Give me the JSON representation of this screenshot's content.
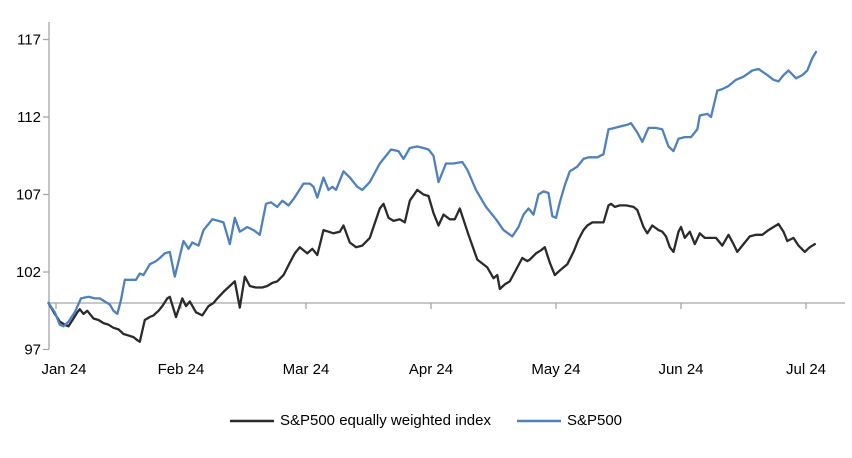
{
  "chart_data": {
    "type": "line",
    "title": "",
    "xlabel": "",
    "ylabel": "",
    "x_axis": {
      "tick_labels": [
        "Jan 24",
        "Feb 24",
        "Mar 24",
        "Apr 24",
        "May 24",
        "Jun 24",
        "Jul 24"
      ],
      "unit": "months since Jan 24"
    },
    "y_axis": {
      "ticks": [
        97,
        102,
        107,
        112,
        117
      ],
      "range": [
        97,
        118
      ],
      "baseline_value": 100,
      "gridline_at_100": true
    },
    "legend_position": "bottom-center",
    "series": [
      {
        "name": "S&P500 equally weighted index",
        "color": "#2b2b2b",
        "points": [
          [
            -0.06,
            100.0
          ],
          [
            -0.01,
            99.3
          ],
          [
            0.03,
            98.8
          ],
          [
            0.07,
            98.6
          ],
          [
            0.1,
            98.5
          ],
          [
            0.14,
            99.0
          ],
          [
            0.17,
            99.4
          ],
          [
            0.19,
            99.6
          ],
          [
            0.22,
            99.3
          ],
          [
            0.25,
            99.5
          ],
          [
            0.3,
            99.0
          ],
          [
            0.34,
            98.9
          ],
          [
            0.38,
            98.7
          ],
          [
            0.42,
            98.6
          ],
          [
            0.46,
            98.4
          ],
          [
            0.5,
            98.3
          ],
          [
            0.54,
            98.0
          ],
          [
            0.58,
            97.9
          ],
          [
            0.62,
            97.8
          ],
          [
            0.65,
            97.6
          ],
          [
            0.67,
            97.5
          ],
          [
            0.71,
            98.9
          ],
          [
            0.75,
            99.1
          ],
          [
            0.78,
            99.2
          ],
          [
            0.82,
            99.5
          ],
          [
            0.85,
            99.8
          ],
          [
            0.89,
            100.3
          ],
          [
            0.91,
            100.4
          ],
          [
            0.96,
            99.1
          ],
          [
            1.01,
            100.3
          ],
          [
            1.04,
            99.8
          ],
          [
            1.07,
            100.1
          ],
          [
            1.12,
            99.4
          ],
          [
            1.17,
            99.2
          ],
          [
            1.22,
            99.8
          ],
          [
            1.26,
            100.0
          ],
          [
            1.29,
            100.3
          ],
          [
            1.35,
            100.8
          ],
          [
            1.39,
            101.1
          ],
          [
            1.43,
            101.4
          ],
          [
            1.47,
            99.7
          ],
          [
            1.51,
            101.7
          ],
          [
            1.55,
            101.1
          ],
          [
            1.6,
            101.0
          ],
          [
            1.65,
            101.0
          ],
          [
            1.69,
            101.1
          ],
          [
            1.73,
            101.3
          ],
          [
            1.77,
            101.4
          ],
          [
            1.82,
            101.8
          ],
          [
            1.87,
            102.6
          ],
          [
            1.91,
            103.2
          ],
          [
            1.95,
            103.6
          ],
          [
            2.01,
            103.2
          ],
          [
            2.05,
            103.5
          ],
          [
            2.09,
            103.1
          ],
          [
            2.14,
            104.7
          ],
          [
            2.18,
            104.6
          ],
          [
            2.22,
            104.5
          ],
          [
            2.27,
            104.6
          ],
          [
            2.3,
            105.0
          ],
          [
            2.35,
            103.9
          ],
          [
            2.4,
            103.6
          ],
          [
            2.45,
            103.7
          ],
          [
            2.51,
            104.2
          ],
          [
            2.59,
            106.1
          ],
          [
            2.62,
            106.4
          ],
          [
            2.66,
            105.5
          ],
          [
            2.7,
            105.3
          ],
          [
            2.75,
            105.4
          ],
          [
            2.79,
            105.2
          ],
          [
            2.83,
            106.6
          ],
          [
            2.89,
            107.3
          ],
          [
            2.94,
            107.0
          ],
          [
            2.98,
            106.9
          ],
          [
            3.02,
            105.8
          ],
          [
            3.06,
            105.0
          ],
          [
            3.1,
            105.7
          ],
          [
            3.15,
            105.4
          ],
          [
            3.19,
            105.4
          ],
          [
            3.23,
            106.1
          ],
          [
            3.3,
            104.4
          ],
          [
            3.37,
            102.8
          ],
          [
            3.45,
            102.3
          ],
          [
            3.5,
            101.6
          ],
          [
            3.53,
            101.8
          ],
          [
            3.55,
            100.9
          ],
          [
            3.59,
            101.2
          ],
          [
            3.63,
            101.4
          ],
          [
            3.67,
            102.0
          ],
          [
            3.73,
            102.9
          ],
          [
            3.77,
            102.7
          ],
          [
            3.79,
            102.8
          ],
          [
            3.84,
            103.2
          ],
          [
            3.88,
            103.4
          ],
          [
            3.91,
            103.6
          ],
          [
            3.95,
            102.6
          ],
          [
            3.99,
            101.8
          ],
          [
            4.03,
            102.1
          ],
          [
            4.09,
            102.5
          ],
          [
            4.14,
            103.3
          ],
          [
            4.18,
            104.1
          ],
          [
            4.22,
            104.7
          ],
          [
            4.25,
            105.0
          ],
          [
            4.29,
            105.2
          ],
          [
            4.34,
            105.2
          ],
          [
            4.38,
            105.2
          ],
          [
            4.42,
            106.3
          ],
          [
            4.44,
            106.4
          ],
          [
            4.47,
            106.2
          ],
          [
            4.51,
            106.3
          ],
          [
            4.56,
            106.3
          ],
          [
            4.62,
            106.2
          ],
          [
            4.65,
            106.0
          ],
          [
            4.7,
            104.9
          ],
          [
            4.73,
            104.5
          ],
          [
            4.77,
            105.0
          ],
          [
            4.82,
            104.7
          ],
          [
            4.85,
            104.6
          ],
          [
            4.88,
            104.3
          ],
          [
            4.91,
            103.6
          ],
          [
            4.94,
            103.3
          ],
          [
            4.98,
            104.6
          ],
          [
            5.0,
            104.9
          ],
          [
            5.03,
            104.2
          ],
          [
            5.07,
            104.6
          ],
          [
            5.11,
            103.8
          ],
          [
            5.15,
            104.5
          ],
          [
            5.19,
            104.2
          ],
          [
            5.24,
            104.2
          ],
          [
            5.28,
            104.2
          ],
          [
            5.33,
            103.7
          ],
          [
            5.38,
            104.4
          ],
          [
            5.42,
            103.8
          ],
          [
            5.45,
            103.3
          ],
          [
            5.5,
            103.8
          ],
          [
            5.55,
            104.3
          ],
          [
            5.6,
            104.4
          ],
          [
            5.65,
            104.4
          ],
          [
            5.7,
            104.7
          ],
          [
            5.74,
            104.9
          ],
          [
            5.78,
            105.1
          ],
          [
            5.82,
            104.6
          ],
          [
            5.85,
            104.0
          ],
          [
            5.9,
            104.2
          ],
          [
            5.94,
            103.7
          ],
          [
            5.99,
            103.3
          ],
          [
            6.03,
            103.6
          ],
          [
            6.07,
            103.8
          ]
        ]
      },
      {
        "name": "S&P500",
        "color": "#4f81bd",
        "points": [
          [
            -0.06,
            100.0
          ],
          [
            -0.01,
            99.4
          ],
          [
            0.03,
            98.6
          ],
          [
            0.06,
            98.5
          ],
          [
            0.1,
            98.8
          ],
          [
            0.15,
            99.4
          ],
          [
            0.2,
            100.3
          ],
          [
            0.26,
            100.4
          ],
          [
            0.31,
            100.3
          ],
          [
            0.35,
            100.3
          ],
          [
            0.39,
            100.1
          ],
          [
            0.43,
            99.9
          ],
          [
            0.46,
            99.5
          ],
          [
            0.49,
            99.3
          ],
          [
            0.52,
            100.2
          ],
          [
            0.55,
            101.5
          ],
          [
            0.6,
            101.5
          ],
          [
            0.64,
            101.5
          ],
          [
            0.67,
            101.9
          ],
          [
            0.7,
            101.8
          ],
          [
            0.75,
            102.5
          ],
          [
            0.8,
            102.7
          ],
          [
            0.83,
            102.9
          ],
          [
            0.87,
            103.2
          ],
          [
            0.91,
            103.3
          ],
          [
            0.95,
            101.7
          ],
          [
            1.02,
            104.0
          ],
          [
            1.06,
            103.5
          ],
          [
            1.09,
            103.9
          ],
          [
            1.14,
            103.7
          ],
          [
            1.18,
            104.7
          ],
          [
            1.22,
            105.1
          ],
          [
            1.25,
            105.4
          ],
          [
            1.3,
            105.3
          ],
          [
            1.34,
            105.2
          ],
          [
            1.39,
            103.8
          ],
          [
            1.43,
            105.5
          ],
          [
            1.47,
            104.6
          ],
          [
            1.53,
            104.9
          ],
          [
            1.58,
            104.7
          ],
          [
            1.63,
            104.4
          ],
          [
            1.68,
            106.4
          ],
          [
            1.72,
            106.5
          ],
          [
            1.77,
            106.2
          ],
          [
            1.81,
            106.6
          ],
          [
            1.86,
            106.3
          ],
          [
            1.9,
            106.7
          ],
          [
            1.94,
            107.2
          ],
          [
            1.98,
            107.7
          ],
          [
            2.03,
            107.7
          ],
          [
            2.06,
            107.5
          ],
          [
            2.09,
            106.8
          ],
          [
            2.14,
            108.1
          ],
          [
            2.18,
            107.3
          ],
          [
            2.21,
            107.5
          ],
          [
            2.24,
            107.3
          ],
          [
            2.3,
            108.5
          ],
          [
            2.35,
            108.1
          ],
          [
            2.41,
            107.5
          ],
          [
            2.45,
            107.3
          ],
          [
            2.51,
            107.8
          ],
          [
            2.59,
            109.0
          ],
          [
            2.64,
            109.5
          ],
          [
            2.68,
            109.9
          ],
          [
            2.74,
            109.8
          ],
          [
            2.78,
            109.3
          ],
          [
            2.83,
            110.0
          ],
          [
            2.89,
            110.1
          ],
          [
            2.94,
            110.0
          ],
          [
            2.98,
            109.9
          ],
          [
            3.02,
            109.5
          ],
          [
            3.06,
            107.8
          ],
          [
            3.12,
            109.0
          ],
          [
            3.18,
            109.0
          ],
          [
            3.25,
            109.1
          ],
          [
            3.29,
            108.6
          ],
          [
            3.36,
            107.3
          ],
          [
            3.44,
            106.2
          ],
          [
            3.52,
            105.4
          ],
          [
            3.58,
            104.7
          ],
          [
            3.65,
            104.3
          ],
          [
            3.7,
            104.9
          ],
          [
            3.74,
            105.7
          ],
          [
            3.78,
            106.1
          ],
          [
            3.82,
            105.7
          ],
          [
            3.86,
            107.0
          ],
          [
            3.9,
            107.2
          ],
          [
            3.94,
            107.1
          ],
          [
            3.97,
            105.6
          ],
          [
            4.0,
            105.5
          ],
          [
            4.03,
            106.5
          ],
          [
            4.07,
            107.6
          ],
          [
            4.11,
            108.5
          ],
          [
            4.17,
            108.8
          ],
          [
            4.22,
            109.3
          ],
          [
            4.26,
            109.4
          ],
          [
            4.33,
            109.4
          ],
          [
            4.38,
            109.6
          ],
          [
            4.42,
            111.2
          ],
          [
            4.47,
            111.3
          ],
          [
            4.52,
            111.4
          ],
          [
            4.57,
            111.5
          ],
          [
            4.6,
            111.6
          ],
          [
            4.65,
            111.0
          ],
          [
            4.69,
            110.4
          ],
          [
            4.74,
            111.3
          ],
          [
            4.8,
            111.3
          ],
          [
            4.85,
            111.2
          ],
          [
            4.9,
            110.1
          ],
          [
            4.94,
            109.8
          ],
          [
            4.98,
            110.6
          ],
          [
            5.03,
            110.7
          ],
          [
            5.08,
            110.7
          ],
          [
            5.13,
            111.2
          ],
          [
            5.15,
            112.1
          ],
          [
            5.21,
            112.2
          ],
          [
            5.24,
            112.0
          ],
          [
            5.29,
            113.7
          ],
          [
            5.33,
            113.8
          ],
          [
            5.38,
            114.0
          ],
          [
            5.44,
            114.4
          ],
          [
            5.5,
            114.6
          ],
          [
            5.57,
            115.0
          ],
          [
            5.62,
            115.1
          ],
          [
            5.69,
            114.7
          ],
          [
            5.74,
            114.4
          ],
          [
            5.78,
            114.3
          ],
          [
            5.82,
            114.7
          ],
          [
            5.86,
            115.0
          ],
          [
            5.92,
            114.5
          ],
          [
            5.97,
            114.7
          ],
          [
            6.01,
            115.0
          ],
          [
            6.05,
            115.8
          ],
          [
            6.08,
            116.2
          ]
        ]
      }
    ]
  },
  "colors": {
    "axis": "#a6a6a6",
    "background": "#ffffff",
    "text": "#000000",
    "series_ew": "#2b2b2b",
    "series_sp500": "#4f81bd"
  }
}
